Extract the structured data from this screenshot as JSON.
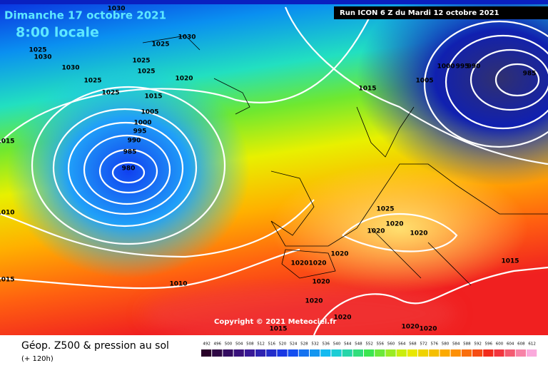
{
  "header": {
    "date": "Dimanche 17 octobre 2021",
    "time": "8:00 locale",
    "run": "Run ICON 6 Z du Mardi 12 octobre 2021"
  },
  "map": {
    "copyright": "Copyright © 2021 Meteociel.fr",
    "isobar_labels": [
      1030,
      1025,
      1030,
      1030,
      1030,
      1025,
      1025,
      1025,
      1020,
      1025,
      1025,
      1015,
      1005,
      1000,
      995,
      990,
      985,
      980,
      1015,
      1010,
      1015,
      1010,
      1015,
      1005,
      1000,
      995,
      990,
      985,
      1025,
      1020,
      1020,
      1020,
      1020,
      1020,
      1020,
      1020,
      1020,
      1020,
      1015,
      1020,
      1020,
      1015
    ]
  },
  "footer": {
    "title": "Géop. Z500 & pression au sol",
    "lead": "(+ 120h)"
  },
  "legend": {
    "values": [
      492,
      496,
      500,
      504,
      508,
      512,
      516,
      520,
      524,
      528,
      532,
      536,
      540,
      544,
      548,
      552,
      556,
      560,
      564,
      568,
      572,
      576,
      580,
      584,
      588,
      592,
      596,
      600,
      604,
      608,
      612
    ]
  }
}
